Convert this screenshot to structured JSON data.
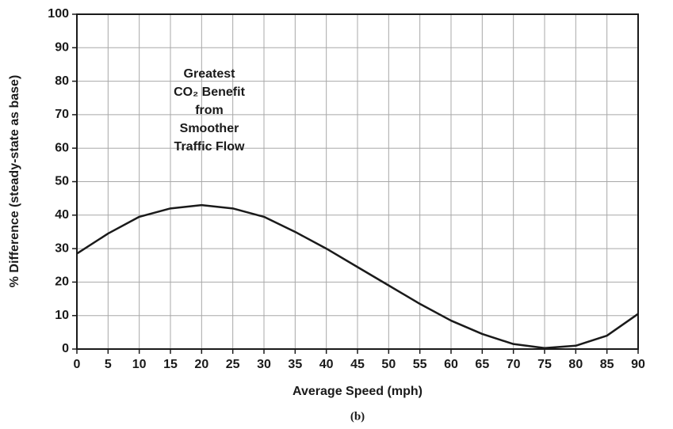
{
  "chart_data": {
    "type": "line",
    "x_label": "Average Speed (mph)",
    "y_label": "% Difference (steady-state as base)",
    "caption": "(b)",
    "annotations": [
      "Greatest",
      "CO₂ Benefit",
      "from",
      "Smoother",
      "Traffic Flow"
    ],
    "x": [
      0,
      5,
      10,
      15,
      20,
      25,
      30,
      35,
      40,
      45,
      50,
      55,
      60,
      65,
      70,
      75,
      80,
      85,
      90
    ],
    "values": [
      28.5,
      34.5,
      39.5,
      42,
      43,
      42,
      39.5,
      35,
      30,
      24.5,
      19,
      13.5,
      8.5,
      4.5,
      1.5,
      0.3,
      1,
      4,
      10.5
    ],
    "color": "#1a1a1a",
    "xlim": [
      0,
      90
    ],
    "xticks": [
      0,
      5,
      10,
      15,
      20,
      25,
      30,
      35,
      40,
      45,
      50,
      55,
      60,
      65,
      70,
      75,
      80,
      85,
      90
    ],
    "ylim": [
      0,
      100
    ],
    "yticks": [
      0,
      10,
      20,
      30,
      40,
      50,
      60,
      70,
      80,
      90,
      100
    ],
    "grid": true
  }
}
